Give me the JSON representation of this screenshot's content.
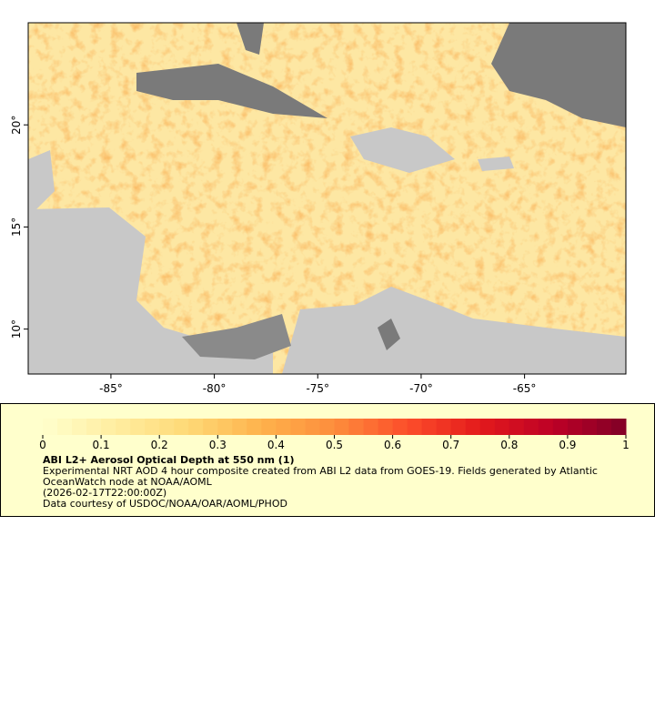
{
  "map": {
    "lonlim": [
      -89,
      -60.1
    ],
    "latlim": [
      7.8,
      25
    ],
    "lonticks": [
      {
        "value": -85,
        "label": "-85°"
      },
      {
        "value": -80,
        "label": "-80°"
      },
      {
        "value": -75,
        "label": "-75°"
      },
      {
        "value": -70,
        "label": "-70°"
      },
      {
        "value": -65,
        "label": "-65°"
      }
    ],
    "latticks": [
      {
        "value": 10,
        "label": "10°"
      },
      {
        "value": 15,
        "label": "15°"
      },
      {
        "value": 20,
        "label": "20°"
      }
    ]
  },
  "legend": {
    "title": "ABI L2+ Aerosol Optical Depth at 550 nm (1)",
    "description": "Experimental NRT AOD 4 hour composite created from ABI L2 data from GOES-19. Fields generated by Atlantic OceanWatch node at NOAA/AOML",
    "timestamp": "(2026-02-17T22:00:00Z)",
    "credit": "Data courtesy of USDOC/NOAA/OAR/AOML/PHOD",
    "range": [
      0,
      1
    ],
    "ticks": [
      0,
      0.1,
      0.2,
      0.3,
      0.4,
      0.5,
      0.6,
      0.7,
      0.8,
      0.9,
      1
    ],
    "colors": [
      "#ffffcc",
      "#ffeda0",
      "#fed976",
      "#feb24c",
      "#fd8d3c",
      "#fc4e2a",
      "#e31a1c",
      "#bd0026",
      "#800026"
    ]
  }
}
